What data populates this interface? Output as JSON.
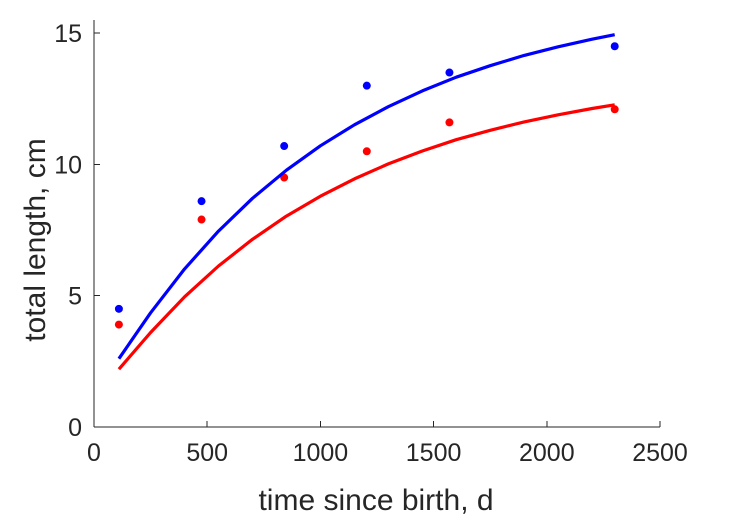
{
  "chart_data": {
    "type": "scatter",
    "title": "",
    "xlabel": "time since birth, d",
    "ylabel": "total length, cm",
    "xlim": [
      0,
      2500
    ],
    "ylim": [
      0,
      15.5
    ],
    "xticks": [
      0,
      500,
      1000,
      1500,
      2000,
      2500
    ],
    "yticks": [
      0,
      5,
      10,
      15
    ],
    "grid": false,
    "legend": "none",
    "series": [
      {
        "kind": "points",
        "color": "#0000ff",
        "x": [
          110,
          475,
          840,
          1205,
          1570,
          2300
        ],
        "y": [
          4.5,
          8.6,
          10.7,
          13.0,
          13.5,
          14.5
        ]
      },
      {
        "kind": "points",
        "color": "#ff0000",
        "x": [
          110,
          475,
          840,
          1205,
          1570,
          2300
        ],
        "y": [
          3.9,
          7.9,
          9.5,
          10.5,
          11.6,
          12.1
        ]
      },
      {
        "kind": "line",
        "color": "#0000ff",
        "x": [
          110,
          250,
          400,
          550,
          700,
          850,
          1000,
          1150,
          1300,
          1450,
          1600,
          1750,
          1900,
          2050,
          2200,
          2300
        ],
        "y": [
          2.6,
          4.35,
          6.02,
          7.46,
          8.71,
          9.78,
          10.71,
          11.51,
          12.2,
          12.8,
          13.32,
          13.76,
          14.15,
          14.48,
          14.77,
          14.94
        ]
      },
      {
        "kind": "line",
        "color": "#ff0000",
        "x": [
          110,
          250,
          400,
          550,
          700,
          850,
          1000,
          1150,
          1300,
          1450,
          1600,
          1750,
          1900,
          2050,
          2200,
          2300
        ],
        "y": [
          2.2,
          3.6,
          4.96,
          6.13,
          7.15,
          8.03,
          8.79,
          9.45,
          10.02,
          10.51,
          10.94,
          11.3,
          11.62,
          11.89,
          12.13,
          12.27
        ]
      }
    ]
  }
}
